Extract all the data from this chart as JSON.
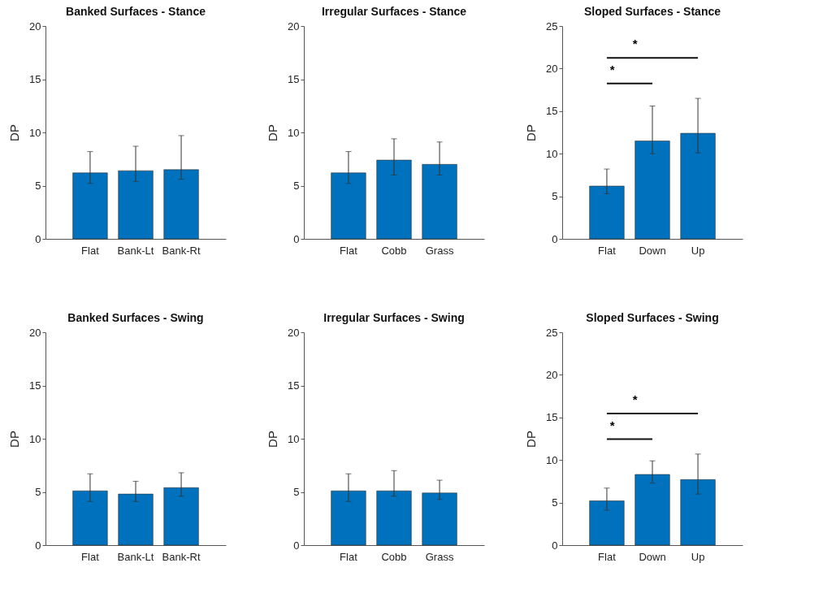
{
  "chart_data": [
    {
      "type": "bar",
      "title": "Banked Surfaces - Stance",
      "ylabel": "DP",
      "categories": [
        "Flat",
        "Bank-Lt",
        "Bank-Rt"
      ],
      "values": [
        6.2,
        6.4,
        6.5
      ],
      "color": "#0072bd",
      "errors": [
        [
          5.2,
          8.2
        ],
        [
          5.4,
          8.7
        ],
        [
          5.6,
          9.7
        ]
      ],
      "ylim": [
        0,
        20
      ],
      "yticks": [
        0,
        5,
        10,
        15,
        20
      ]
    },
    {
      "type": "bar",
      "title": "Irregular Surfaces - Stance",
      "ylabel": "DP",
      "categories": [
        "Flat",
        "Cobb",
        "Grass"
      ],
      "values": [
        6.2,
        7.4,
        7.0
      ],
      "color": "#0072bd",
      "errors": [
        [
          5.2,
          8.2
        ],
        [
          6.0,
          9.4
        ],
        [
          6.0,
          9.1
        ]
      ],
      "ylim": [
        0,
        20
      ],
      "yticks": [
        0,
        5,
        10,
        15,
        20
      ]
    },
    {
      "type": "bar",
      "title": "Sloped Surfaces - Stance",
      "ylabel": "DP",
      "categories": [
        "Flat",
        "Down",
        "Up"
      ],
      "values": [
        6.2,
        11.5,
        12.4
      ],
      "color": "#0072bd",
      "errors": [
        [
          5.3,
          8.2
        ],
        [
          10.0,
          15.6
        ],
        [
          10.1,
          16.5
        ]
      ],
      "ylim": [
        0,
        25
      ],
      "yticks": [
        0,
        5,
        10,
        15,
        20,
        25
      ],
      "annotations": [
        "*",
        "*"
      ]
    },
    {
      "type": "bar",
      "title": "Banked Surfaces - Swing",
      "ylabel": "DP",
      "categories": [
        "Flat",
        "Bank-Lt",
        "Bank-Rt"
      ],
      "values": [
        5.1,
        4.8,
        5.4
      ],
      "color": "#0072bd",
      "errors": [
        [
          4.1,
          6.7
        ],
        [
          4.1,
          6.0
        ],
        [
          4.6,
          6.8
        ]
      ],
      "ylim": [
        0,
        20
      ],
      "yticks": [
        0,
        5,
        10,
        15,
        20
      ]
    },
    {
      "type": "bar",
      "title": "Irregular Surfaces - Swing",
      "ylabel": "DP",
      "categories": [
        "Flat",
        "Cobb",
        "Grass"
      ],
      "values": [
        5.1,
        5.1,
        4.9
      ],
      "color": "#0072bd",
      "errors": [
        [
          4.1,
          6.7
        ],
        [
          4.6,
          7.0
        ],
        [
          4.3,
          6.1
        ]
      ],
      "ylim": [
        0,
        20
      ],
      "yticks": [
        0,
        5,
        10,
        15,
        20
      ]
    },
    {
      "type": "bar",
      "title": "Sloped Surfaces - Swing",
      "ylabel": "DP",
      "categories": [
        "Flat",
        "Down",
        "Up"
      ],
      "values": [
        5.2,
        8.3,
        7.7
      ],
      "color": "#0072bd",
      "errors": [
        [
          4.1,
          6.7
        ],
        [
          7.3,
          9.9
        ],
        [
          6.0,
          10.7
        ]
      ],
      "ylim": [
        0,
        25
      ],
      "yticks": [
        0,
        5,
        10,
        15,
        20,
        25
      ],
      "annotations": [
        "*",
        "*"
      ]
    }
  ]
}
